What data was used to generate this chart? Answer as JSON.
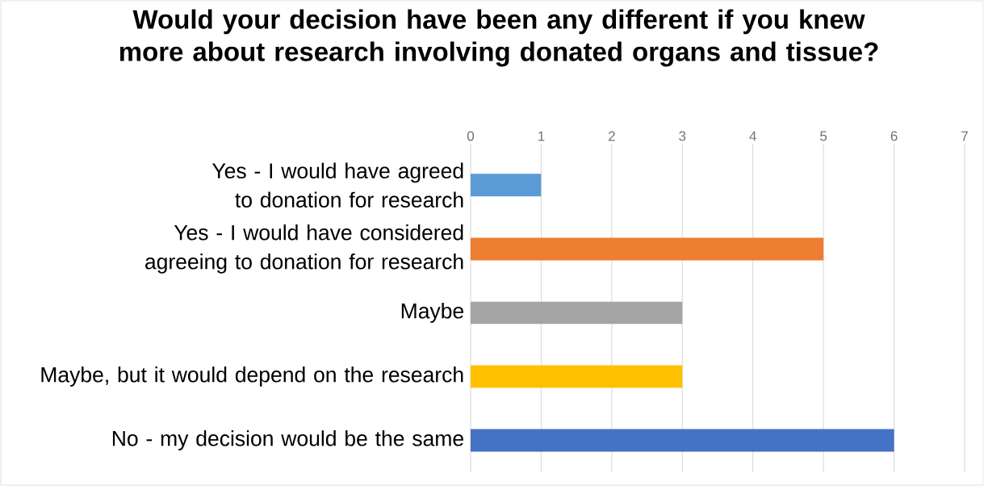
{
  "chart_data": {
    "type": "bar",
    "orientation": "horizontal",
    "title": "Would your decision have been any different if you knew more about research involving donated organs and tissue?",
    "categories": [
      "Yes - I would have agreed to donation for research",
      "Yes - I would have considered agreeing to donation for research",
      "Maybe",
      "Maybe, but it would depend on the research",
      "No - my decision would be the same"
    ],
    "values": [
      1,
      5,
      3,
      3,
      6
    ],
    "colors": [
      "#5b9bd5",
      "#ed7d31",
      "#a5a5a5",
      "#ffc000",
      "#4472c4"
    ],
    "xlim": [
      0,
      7
    ],
    "xticks": [
      0,
      1,
      2,
      3,
      4,
      5,
      6,
      7
    ],
    "grid": "x"
  }
}
